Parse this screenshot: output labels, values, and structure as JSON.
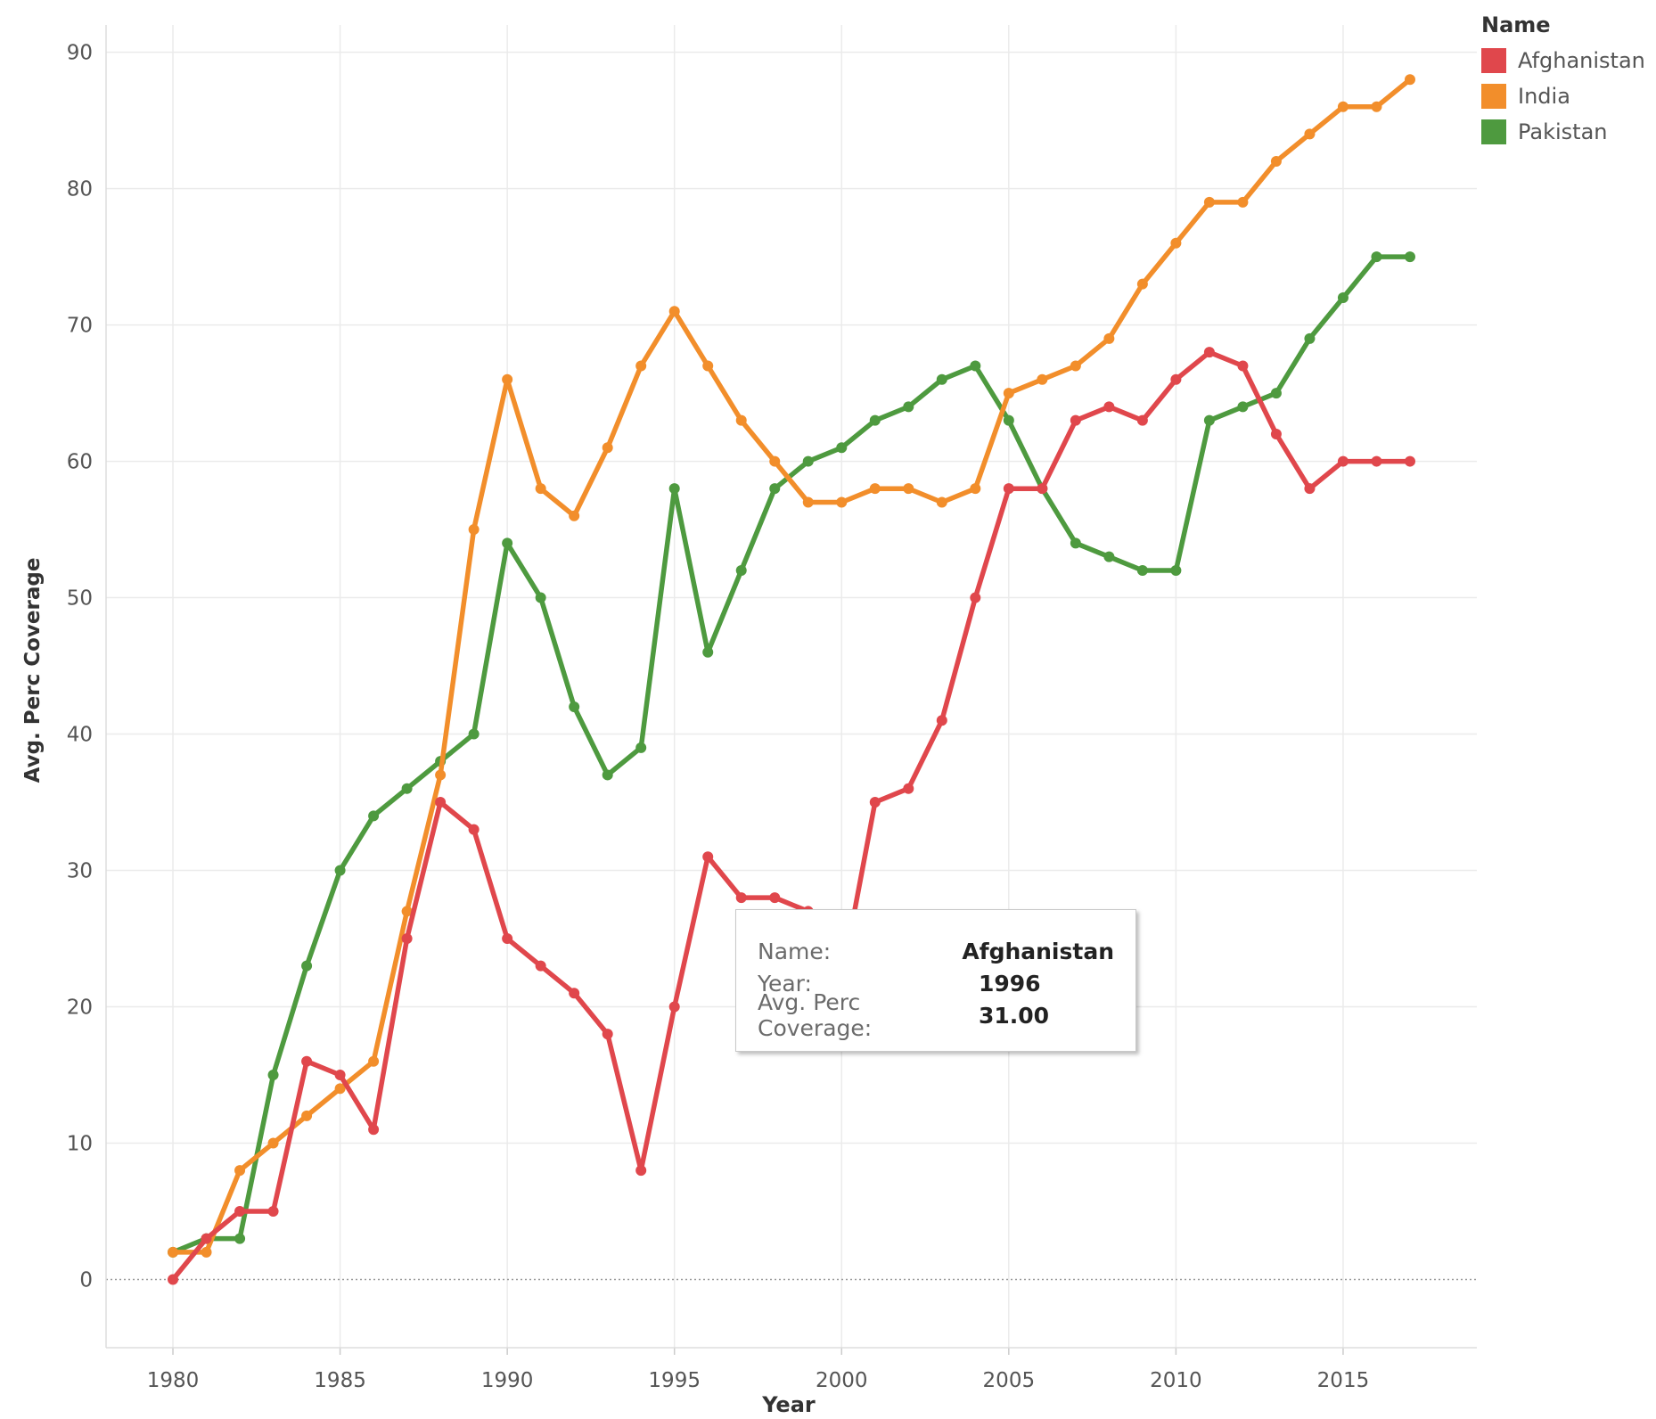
{
  "chart_data": {
    "type": "line",
    "title": "",
    "xlabel": "Year",
    "ylabel": "Avg. Perc Coverage",
    "xlim": [
      1978,
      2019
    ],
    "ylim": [
      -5,
      92
    ],
    "x_ticks": [
      1980,
      1985,
      1990,
      1995,
      2000,
      2005,
      2010,
      2015
    ],
    "y_ticks": [
      0,
      10,
      20,
      30,
      40,
      50,
      60,
      70,
      80,
      90
    ],
    "grid": true,
    "legend_title": "Name",
    "legend_position": "top-right",
    "x": [
      1980,
      1981,
      1982,
      1983,
      1984,
      1985,
      1986,
      1987,
      1988,
      1989,
      1990,
      1991,
      1992,
      1993,
      1994,
      1995,
      1996,
      1997,
      1998,
      1999,
      2000,
      2001,
      2002,
      2003,
      2004,
      2005,
      2006,
      2007,
      2008,
      2009,
      2010,
      2011,
      2012,
      2013,
      2014,
      2015,
      2016,
      2017
    ],
    "series": [
      {
        "name": "Afghanistan",
        "color": "#e0474c",
        "values": [
          0,
          3,
          5,
          5,
          16,
          15,
          11,
          25,
          35,
          33,
          25,
          23,
          21,
          18,
          8,
          20,
          31,
          28,
          28,
          27,
          22,
          35,
          36,
          41,
          50,
          58,
          58,
          63,
          64,
          63,
          66,
          68,
          67,
          62,
          58,
          60,
          60,
          60
        ]
      },
      {
        "name": "India",
        "color": "#f28e2b",
        "values": [
          2,
          2,
          8,
          10,
          12,
          14,
          16,
          27,
          37,
          55,
          66,
          58,
          56,
          61,
          67,
          71,
          67,
          63,
          60,
          57,
          57,
          58,
          58,
          57,
          58,
          65,
          66,
          67,
          69,
          73,
          76,
          79,
          79,
          82,
          84,
          86,
          86,
          88
        ]
      },
      {
        "name": "Pakistan",
        "color": "#4e9a3f",
        "values": [
          2,
          3,
          3,
          15,
          23,
          30,
          34,
          36,
          38,
          40,
          54,
          50,
          42,
          37,
          39,
          58,
          46,
          52,
          58,
          60,
          61,
          63,
          64,
          66,
          67,
          63,
          58,
          54,
          53,
          52,
          52,
          63,
          64,
          65,
          69,
          72,
          75,
          75
        ]
      }
    ]
  },
  "legend": {
    "title": "Name",
    "items": [
      {
        "label": "Afghanistan",
        "color": "#e0474c"
      },
      {
        "label": "India",
        "color": "#f28e2b"
      },
      {
        "label": "Pakistan",
        "color": "#4e9a3f"
      }
    ]
  },
  "tooltip": {
    "rows": [
      {
        "key": "Name:",
        "value": "Afghanistan"
      },
      {
        "key": "Year:",
        "value": "1996"
      },
      {
        "key": "Avg. Perc Coverage:",
        "value": "31.00"
      }
    ]
  }
}
